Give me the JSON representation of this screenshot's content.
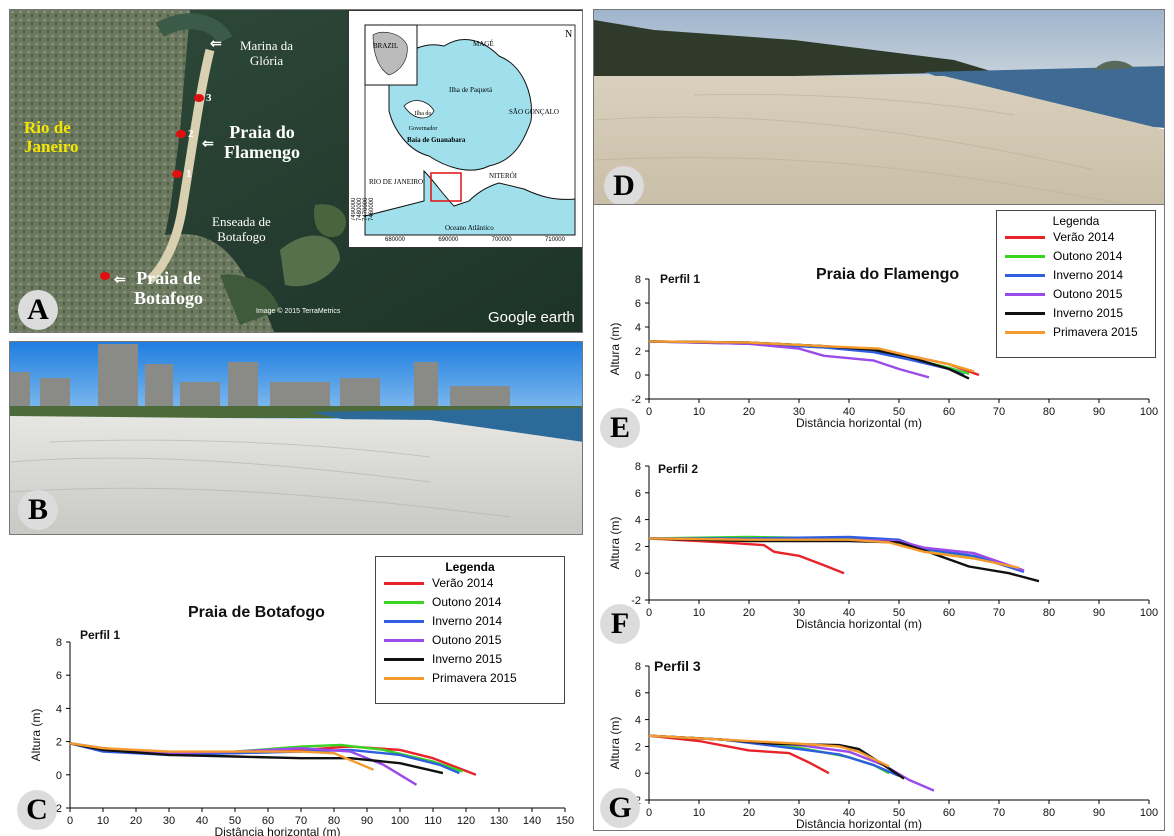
{
  "panels": {
    "A": "A",
    "B": "B",
    "C": "C",
    "D": "D",
    "E": "E",
    "F": "F",
    "G": "G"
  },
  "map": {
    "marina": "Marina da\nGlória",
    "flamengo": "Praia do\nFlamengo",
    "rio": "Rio de\nJaneiro",
    "enseada": "Enseada de\nBotafogo",
    "botafogo": "Praia de\nBotafogo",
    "google": "Google earth",
    "imagery": "Image © 2015 TerraMetrics",
    "points": [
      "1",
      "2",
      "3"
    ],
    "inset": {
      "mage": "MAGÉ",
      "paqueta": "Ilha de Paquetá",
      "sao_goncalo": "SÃO GONÇALO",
      "governador": "Ilha do Governador",
      "baia": "Baía de Guanabara",
      "niteroi": "NITERÓI",
      "rio": "RIO DE JANEIRO",
      "oceano": "Oceano Atlântico",
      "brazil": "BRAZIL",
      "north": "N",
      "x_ticks": [
        "680000",
        "690000",
        "700000",
        "710000"
      ],
      "y_ticks": [
        "7490000",
        "7480000",
        "7470000",
        "7460000"
      ]
    }
  },
  "colors": {
    "Verão 2014": "#e8232a",
    "Outono 2014": "#39d420",
    "Inverno 2014": "#2f5fe0",
    "Outono 2015": "#9a4bea",
    "Inverno 2015": "#111111",
    "Primavera 2015": "#f59a2c"
  },
  "chart_data": [
    {
      "type": "line",
      "id": "C",
      "title": "Praia de Botafogo",
      "subtitle": "Perfil 1",
      "xlabel": "Distância horizontal (m)",
      "ylabel": "Altura (m)",
      "xlim": [
        0,
        150
      ],
      "ylim": [
        -2,
        8
      ],
      "xticks": [
        0,
        10,
        20,
        30,
        40,
        50,
        60,
        70,
        80,
        90,
        100,
        110,
        120,
        130,
        140,
        150
      ],
      "yticks": [
        -2,
        0,
        2,
        4,
        6,
        8
      ],
      "legend_title": "Legenda",
      "legend_position": "top-right",
      "series": [
        {
          "name": "Verão 2014",
          "x": [
            0,
            10,
            30,
            50,
            70,
            85,
            100,
            110,
            123
          ],
          "y": [
            1.9,
            1.5,
            1.3,
            1.3,
            1.5,
            1.7,
            1.5,
            1.0,
            0.0
          ]
        },
        {
          "name": "Outono 2014",
          "x": [
            0,
            10,
            30,
            50,
            70,
            82,
            95,
            110,
            119
          ],
          "y": [
            1.9,
            1.6,
            1.3,
            1.4,
            1.7,
            1.8,
            1.5,
            0.8,
            0.2
          ]
        },
        {
          "name": "Inverno 2014",
          "x": [
            0,
            10,
            30,
            50,
            70,
            85,
            100,
            112,
            118
          ],
          "y": [
            1.9,
            1.4,
            1.2,
            1.3,
            1.4,
            1.5,
            1.2,
            0.6,
            0.1
          ]
        },
        {
          "name": "Outono 2015",
          "x": [
            0,
            10,
            30,
            50,
            70,
            85,
            95,
            105
          ],
          "y": [
            1.9,
            1.6,
            1.3,
            1.4,
            1.6,
            1.4,
            0.6,
            -0.6
          ]
        },
        {
          "name": "Inverno 2015",
          "x": [
            0,
            10,
            30,
            50,
            70,
            85,
            100,
            113
          ],
          "y": [
            1.9,
            1.5,
            1.2,
            1.1,
            1.0,
            1.0,
            0.7,
            0.1
          ]
        },
        {
          "name": "Primavera 2015",
          "x": [
            0,
            10,
            30,
            50,
            70,
            80,
            92
          ],
          "y": [
            1.9,
            1.6,
            1.4,
            1.4,
            1.4,
            1.3,
            0.3
          ]
        }
      ]
    },
    {
      "type": "line",
      "id": "E",
      "title": "Praia do Flamengo",
      "subtitle": "Perfil 1",
      "xlabel": "Distância horizontal (m)",
      "ylabel": "Altura (m)",
      "xlim": [
        0,
        100
      ],
      "ylim": [
        -2,
        8
      ],
      "xticks": [
        0,
        10,
        20,
        30,
        40,
        50,
        60,
        70,
        80,
        90,
        100
      ],
      "yticks": [
        -2,
        0,
        2,
        4,
        6,
        8
      ],
      "legend_title": "Legenda",
      "legend_position": "top-right",
      "series": [
        {
          "name": "Verão 2014",
          "x": [
            0,
            20,
            35,
            45,
            52,
            60,
            66
          ],
          "y": [
            2.8,
            2.7,
            2.4,
            2.1,
            1.6,
            0.9,
            0.0
          ]
        },
        {
          "name": "Outono 2014",
          "x": [
            0,
            20,
            35,
            45,
            52,
            60,
            64
          ],
          "y": [
            2.8,
            2.7,
            2.4,
            2.0,
            1.4,
            0.6,
            0.1
          ]
        },
        {
          "name": "Inverno 2014",
          "x": [
            0,
            20,
            35,
            45,
            52,
            60,
            63
          ],
          "y": [
            2.8,
            2.6,
            2.3,
            1.9,
            1.3,
            0.5,
            0.0
          ]
        },
        {
          "name": "Outono 2015",
          "x": [
            0,
            20,
            30,
            35,
            45,
            50,
            56
          ],
          "y": [
            2.8,
            2.6,
            2.2,
            1.6,
            1.2,
            0.5,
            -0.2
          ]
        },
        {
          "name": "Inverno 2015",
          "x": [
            0,
            20,
            35,
            45,
            52,
            60,
            64
          ],
          "y": [
            2.8,
            2.7,
            2.4,
            2.1,
            1.5,
            0.5,
            -0.3
          ]
        },
        {
          "name": "Primavera 2015",
          "x": [
            0,
            20,
            35,
            46,
            52,
            60,
            65
          ],
          "y": [
            2.8,
            2.7,
            2.4,
            2.2,
            1.6,
            0.9,
            0.3
          ]
        }
      ]
    },
    {
      "type": "line",
      "id": "F",
      "title": "",
      "subtitle": "Perfil 2",
      "xlabel": "Distância horizontal (m)",
      "ylabel": "Altura (m)",
      "xlim": [
        0,
        100
      ],
      "ylim": [
        -2,
        8
      ],
      "xticks": [
        0,
        10,
        20,
        30,
        40,
        50,
        60,
        70,
        80,
        90,
        100
      ],
      "yticks": [
        -2,
        0,
        2,
        4,
        6,
        8
      ],
      "series": [
        {
          "name": "Verão 2014",
          "x": [
            0,
            15,
            23,
            25,
            30,
            35,
            39
          ],
          "y": [
            2.6,
            2.3,
            2.1,
            1.6,
            1.3,
            0.6,
            0.0
          ]
        },
        {
          "name": "Outono 2014",
          "x": [
            0,
            20,
            40,
            50,
            55,
            65,
            75
          ],
          "y": [
            2.6,
            2.7,
            2.6,
            2.4,
            1.8,
            1.2,
            0.2
          ]
        },
        {
          "name": "Inverno 2014",
          "x": [
            0,
            20,
            40,
            50,
            55,
            65,
            75
          ],
          "y": [
            2.6,
            2.6,
            2.7,
            2.5,
            1.8,
            1.3,
            0.1
          ]
        },
        {
          "name": "Outono 2015",
          "x": [
            0,
            20,
            40,
            50,
            55,
            65,
            75
          ],
          "y": [
            2.6,
            2.5,
            2.5,
            2.4,
            1.9,
            1.5,
            0.2
          ]
        },
        {
          "name": "Inverno 2015",
          "x": [
            0,
            20,
            40,
            50,
            55,
            64,
            72,
            78
          ],
          "y": [
            2.6,
            2.4,
            2.4,
            2.3,
            1.7,
            0.5,
            0.0,
            -0.6
          ]
        },
        {
          "name": "Primavera 2015",
          "x": [
            0,
            20,
            40,
            48,
            55,
            65,
            74
          ],
          "y": [
            2.6,
            2.5,
            2.5,
            2.3,
            1.6,
            1.1,
            0.4
          ]
        }
      ]
    },
    {
      "type": "line",
      "id": "G",
      "title": "",
      "subtitle": "Perfil 3",
      "xlabel": "Distância horizontal (m)",
      "ylabel": "Altura (m)",
      "xlim": [
        0,
        100
      ],
      "ylim": [
        -2,
        8
      ],
      "xticks": [
        0,
        10,
        20,
        30,
        40,
        50,
        60,
        70,
        80,
        90,
        100
      ],
      "yticks": [
        -2,
        0,
        2,
        4,
        6,
        8
      ],
      "series": [
        {
          "name": "Verão 2014",
          "x": [
            0,
            10,
            20,
            28,
            32,
            36
          ],
          "y": [
            2.8,
            2.4,
            1.7,
            1.5,
            0.8,
            0.0
          ]
        },
        {
          "name": "Outono 2014",
          "x": [
            0,
            15,
            30,
            40,
            45,
            48
          ],
          "y": [
            2.8,
            2.5,
            1.9,
            1.2,
            0.6,
            0.0
          ]
        },
        {
          "name": "Inverno 2014",
          "x": [
            0,
            15,
            30,
            38,
            45,
            50
          ],
          "y": [
            2.8,
            2.5,
            1.8,
            1.4,
            0.6,
            -0.2
          ]
        },
        {
          "name": "Outono 2015",
          "x": [
            0,
            15,
            30,
            40,
            47,
            52,
            57
          ],
          "y": [
            2.8,
            2.5,
            2.1,
            1.6,
            0.6,
            -0.5,
            -1.3
          ]
        },
        {
          "name": "Inverno 2015",
          "x": [
            0,
            15,
            25,
            38,
            42,
            47,
            51
          ],
          "y": [
            2.8,
            2.5,
            2.2,
            2.1,
            1.8,
            0.6,
            -0.4
          ]
        },
        {
          "name": "Primavera 2015",
          "x": [
            0,
            15,
            30,
            38,
            42,
            48
          ],
          "y": [
            2.8,
            2.5,
            2.2,
            2.0,
            1.6,
            0.5
          ]
        }
      ]
    }
  ]
}
